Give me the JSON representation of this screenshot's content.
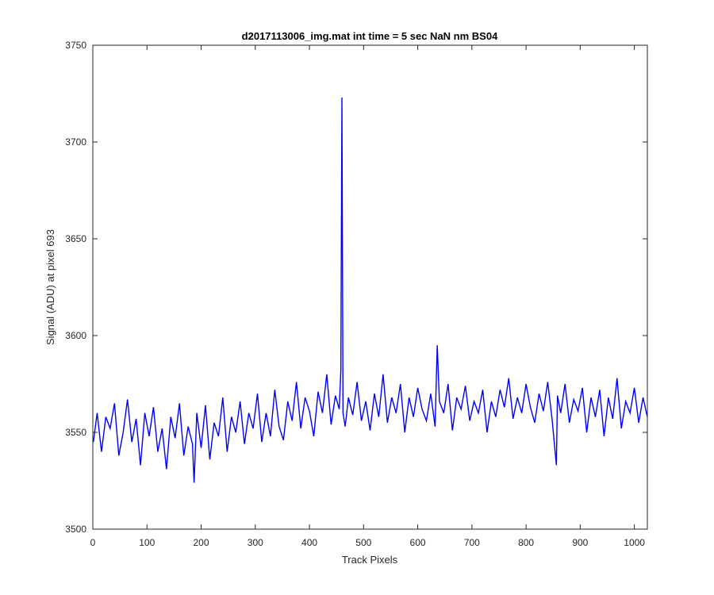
{
  "chart_data": {
    "type": "line",
    "title": "d2017113006_img.mat int time = 5 sec  NaN nm BS04",
    "xlabel": "Track Pixels",
    "ylabel": "Signal (ADU) at pixel 693",
    "xlim": [
      0,
      1024
    ],
    "ylim": [
      3500,
      3750
    ],
    "xticks": [
      0,
      100,
      200,
      300,
      400,
      500,
      600,
      700,
      800,
      900,
      1000
    ],
    "yticks": [
      3500,
      3550,
      3600,
      3650,
      3700,
      3750
    ],
    "grid": false,
    "line_color": "#0000ff",
    "series": [
      {
        "x": [
          1,
          8,
          16,
          24,
          32,
          40,
          48,
          56,
          64,
          72,
          80,
          88,
          96,
          104,
          112,
          120,
          128,
          136,
          144,
          152,
          160,
          168,
          176,
          184,
          187,
          192,
          200,
          208,
          216,
          224,
          232,
          240,
          248,
          256,
          264,
          272,
          280,
          288,
          296,
          304,
          312,
          320,
          328,
          336,
          344,
          352,
          360,
          368,
          376,
          384,
          392,
          400,
          408,
          416,
          424,
          432,
          440,
          448,
          455,
          458,
          460,
          462,
          466,
          472,
          480,
          488,
          496,
          504,
          512,
          520,
          528,
          536,
          544,
          552,
          560,
          568,
          576,
          584,
          592,
          600,
          608,
          616,
          624,
          632,
          636,
          640,
          648,
          656,
          664,
          672,
          680,
          688,
          696,
          704,
          712,
          720,
          728,
          736,
          744,
          752,
          760,
          768,
          776,
          784,
          792,
          800,
          808,
          816,
          824,
          832,
          840,
          848,
          856,
          858,
          864,
          872,
          880,
          888,
          896,
          904,
          912,
          920,
          928,
          936,
          944,
          952,
          960,
          968,
          976,
          984,
          992,
          1000,
          1008,
          1016,
          1024
        ],
        "y": [
          3545,
          3560,
          3540,
          3558,
          3552,
          3565,
          3538,
          3550,
          3567,
          3545,
          3557,
          3533,
          3560,
          3548,
          3563,
          3540,
          3552,
          3531,
          3558,
          3547,
          3565,
          3538,
          3553,
          3544,
          3524,
          3560,
          3542,
          3564,
          3536,
          3555,
          3548,
          3568,
          3540,
          3558,
          3550,
          3566,
          3544,
          3560,
          3552,
          3570,
          3545,
          3560,
          3548,
          3572,
          3553,
          3546,
          3566,
          3556,
          3576,
          3552,
          3568,
          3561,
          3548,
          3571,
          3560,
          3580,
          3554,
          3569,
          3562,
          3582,
          3723,
          3560,
          3553,
          3568,
          3559,
          3576,
          3556,
          3566,
          3551,
          3570,
          3558,
          3580,
          3555,
          3568,
          3560,
          3575,
          3550,
          3568,
          3558,
          3573,
          3562,
          3556,
          3570,
          3553,
          3595,
          3566,
          3560,
          3575,
          3551,
          3568,
          3562,
          3574,
          3556,
          3566,
          3560,
          3572,
          3550,
          3566,
          3558,
          3572,
          3563,
          3578,
          3557,
          3568,
          3560,
          3575,
          3563,
          3555,
          3570,
          3561,
          3576,
          3557,
          3533,
          3569,
          3560,
          3575,
          3555,
          3567,
          3561,
          3573,
          3550,
          3568,
          3558,
          3572,
          3548,
          3568,
          3557,
          3578,
          3552,
          3566,
          3560,
          3573,
          3555,
          3568,
          3558
        ]
      }
    ]
  }
}
